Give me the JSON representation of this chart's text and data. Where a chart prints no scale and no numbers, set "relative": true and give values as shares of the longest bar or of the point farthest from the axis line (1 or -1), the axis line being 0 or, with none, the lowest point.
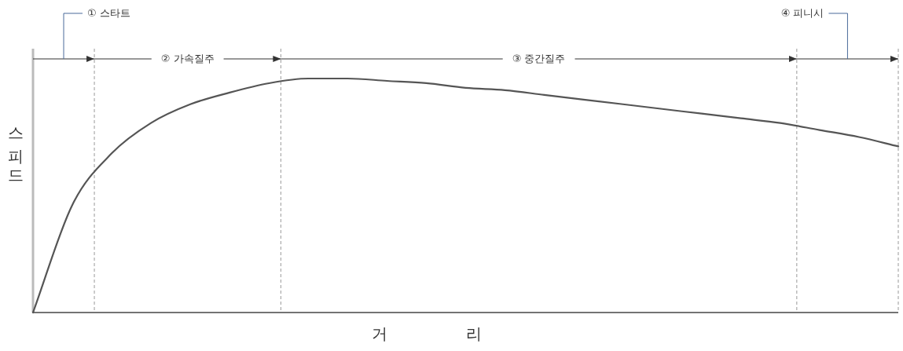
{
  "chart_data": {
    "type": "line",
    "relative": true,
    "ylabel": "스피드",
    "xlabel": "거리",
    "color": "#555555",
    "categories": [
      null,
      null,
      null,
      null,
      null,
      null,
      null,
      null,
      null,
      null,
      null,
      null,
      null,
      null,
      null,
      null,
      null,
      null,
      null,
      null,
      null,
      null,
      null
    ],
    "values": [
      0,
      0.46,
      0.68,
      0.81,
      0.89,
      0.94,
      0.98,
      1.0,
      1.0,
      0.99,
      0.98,
      0.96,
      0.95,
      0.93,
      0.91,
      0.89,
      0.87,
      0.85,
      0.83,
      0.81,
      0.78,
      0.75,
      0.71
    ],
    "annotations": [
      "① 스타트",
      "② 가속질주",
      "③ 중간질주",
      "④ 피니시"
    ]
  }
}
